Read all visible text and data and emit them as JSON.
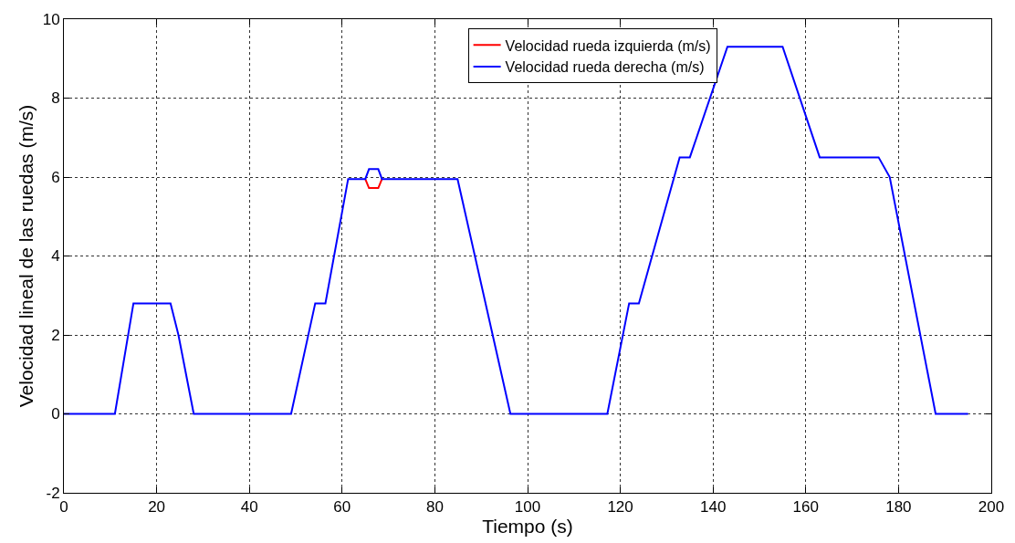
{
  "chart_data": {
    "type": "line",
    "xlabel": "Tiempo (s)",
    "ylabel": "Velocidad lineal de las ruedas (m/s)",
    "x": [
      0,
      11,
      15,
      23,
      24.7,
      28,
      49,
      54.2,
      56.4,
      61.3,
      65.0,
      65.8,
      67.8,
      68.6,
      84.9,
      96.3,
      117.2,
      121.9,
      124,
      132.8,
      135,
      143.1,
      155,
      163,
      175.7,
      178.1,
      188,
      195
    ],
    "series": [
      {
        "name": "Velocidad rueda izquierda (m/s)",
        "color": "#ff0000",
        "x": [
          65.0,
          65.8,
          67.8,
          68.6
        ],
        "values": [
          5.95,
          5.72,
          5.72,
          5.95
        ]
      },
      {
        "name": "Velocidad rueda derecha (m/s)",
        "color": "#0000ff",
        "values": [
          0,
          0,
          2.8,
          2.8,
          2.0,
          0,
          0,
          2.8,
          2.8,
          5.95,
          5.95,
          6.2,
          6.2,
          5.95,
          5.95,
          0,
          0,
          2.8,
          2.8,
          6.5,
          6.5,
          9.3,
          9.3,
          6.5,
          6.5,
          6.0,
          0,
          0
        ]
      }
    ],
    "xlim": [
      0,
      200
    ],
    "xticks": [
      0,
      20,
      40,
      60,
      80,
      100,
      120,
      140,
      160,
      180,
      200
    ],
    "ylim": [
      -2,
      10
    ],
    "yticks": [
      -2,
      0,
      2,
      4,
      6,
      8,
      10
    ],
    "grid": true,
    "legend": "top",
    "line_style": "solid",
    "marker": "none"
  }
}
